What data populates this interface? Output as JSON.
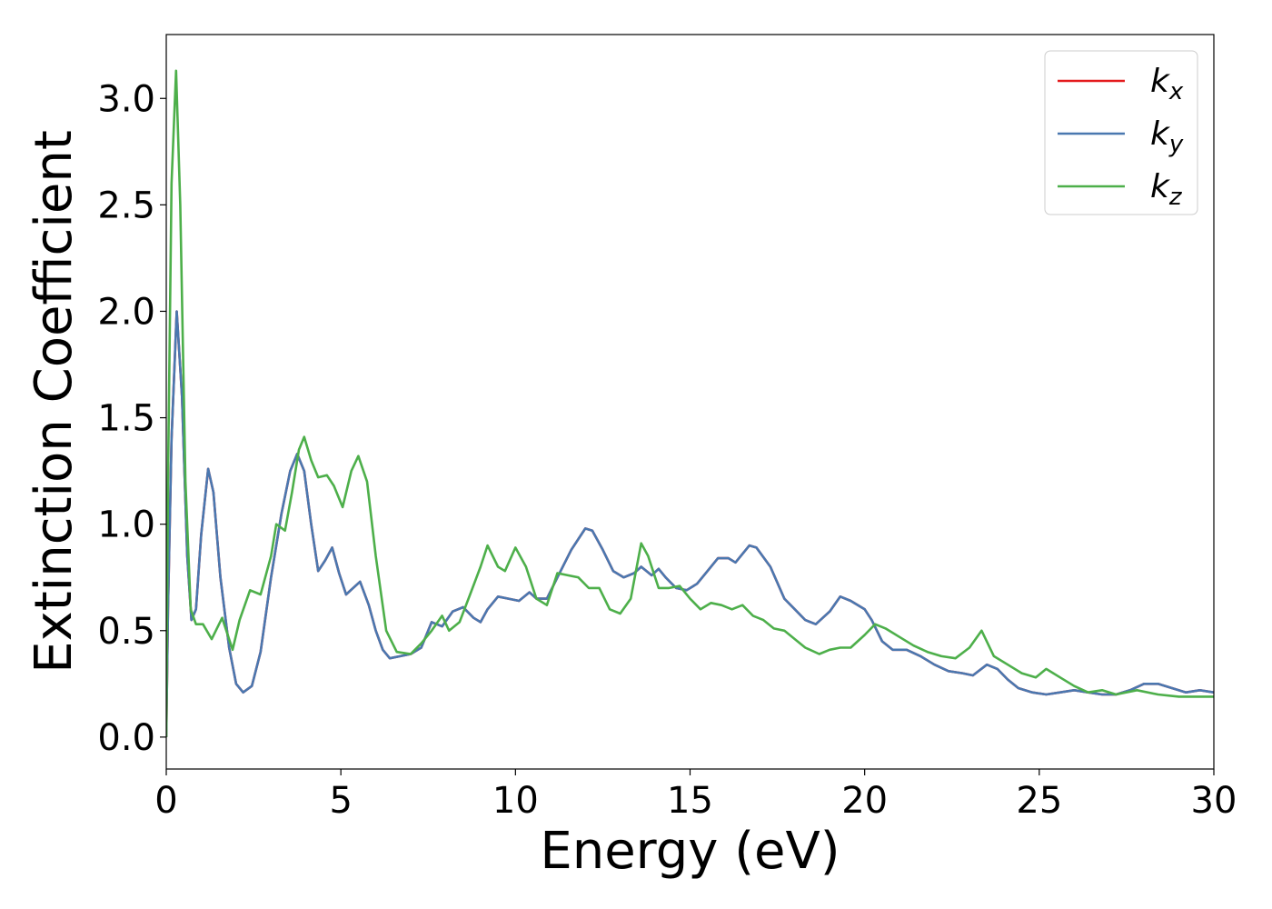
{
  "chart_data": {
    "type": "line",
    "title": "",
    "xlabel": "Energy (eV)",
    "ylabel": "Extinction Coefficient",
    "xlim": [
      0,
      30
    ],
    "ylim": [
      -0.15,
      3.3
    ],
    "xticks": [
      "0",
      "5",
      "10",
      "15",
      "20",
      "25",
      "30"
    ],
    "yticks": [
      "0.0",
      "0.5",
      "1.0",
      "1.5",
      "2.0",
      "2.5",
      "3.0"
    ],
    "grid": false,
    "legend_position": "top-right",
    "series": [
      {
        "name": "k_x",
        "label_base": "k",
        "label_sub": "x",
        "color": "#e41a1c",
        "points": [
          [
            0,
            0
          ],
          [
            0.05,
            0.6
          ],
          [
            0.15,
            1.4
          ],
          [
            0.3,
            2.0
          ],
          [
            0.45,
            1.6
          ],
          [
            0.6,
            0.85
          ],
          [
            0.72,
            0.55
          ],
          [
            0.85,
            0.6
          ],
          [
            1.0,
            0.95
          ],
          [
            1.2,
            1.26
          ],
          [
            1.35,
            1.15
          ],
          [
            1.55,
            0.75
          ],
          [
            1.8,
            0.42
          ],
          [
            2.0,
            0.25
          ],
          [
            2.2,
            0.21
          ],
          [
            2.45,
            0.24
          ],
          [
            2.7,
            0.4
          ],
          [
            3.0,
            0.75
          ],
          [
            3.3,
            1.05
          ],
          [
            3.55,
            1.25
          ],
          [
            3.75,
            1.33
          ],
          [
            3.95,
            1.25
          ],
          [
            4.15,
            1.0
          ],
          [
            4.35,
            0.78
          ],
          [
            4.55,
            0.83
          ],
          [
            4.75,
            0.89
          ],
          [
            4.95,
            0.77
          ],
          [
            5.15,
            0.67
          ],
          [
            5.35,
            0.7
          ],
          [
            5.55,
            0.73
          ],
          [
            5.8,
            0.62
          ],
          [
            6.0,
            0.5
          ],
          [
            6.2,
            0.41
          ],
          [
            6.4,
            0.37
          ],
          [
            6.7,
            0.38
          ],
          [
            7.0,
            0.39
          ],
          [
            7.3,
            0.42
          ],
          [
            7.6,
            0.54
          ],
          [
            7.9,
            0.52
          ],
          [
            8.2,
            0.59
          ],
          [
            8.5,
            0.61
          ],
          [
            8.8,
            0.56
          ],
          [
            9.0,
            0.54
          ],
          [
            9.2,
            0.6
          ],
          [
            9.5,
            0.66
          ],
          [
            9.8,
            0.65
          ],
          [
            10.1,
            0.64
          ],
          [
            10.4,
            0.68
          ],
          [
            10.6,
            0.65
          ],
          [
            10.9,
            0.65
          ],
          [
            11.2,
            0.75
          ],
          [
            11.6,
            0.88
          ],
          [
            12.0,
            0.98
          ],
          [
            12.2,
            0.97
          ],
          [
            12.5,
            0.88
          ],
          [
            12.8,
            0.78
          ],
          [
            13.1,
            0.75
          ],
          [
            13.4,
            0.77
          ],
          [
            13.6,
            0.8
          ],
          [
            13.9,
            0.76
          ],
          [
            14.1,
            0.79
          ],
          [
            14.3,
            0.75
          ],
          [
            14.6,
            0.7
          ],
          [
            14.9,
            0.69
          ],
          [
            15.2,
            0.72
          ],
          [
            15.5,
            0.78
          ],
          [
            15.8,
            0.84
          ],
          [
            16.1,
            0.84
          ],
          [
            16.3,
            0.82
          ],
          [
            16.7,
            0.9
          ],
          [
            16.9,
            0.89
          ],
          [
            17.3,
            0.8
          ],
          [
            17.7,
            0.65
          ],
          [
            18.0,
            0.6
          ],
          [
            18.3,
            0.55
          ],
          [
            18.6,
            0.53
          ],
          [
            19.0,
            0.59
          ],
          [
            19.3,
            0.66
          ],
          [
            19.6,
            0.64
          ],
          [
            20.0,
            0.6
          ],
          [
            20.2,
            0.55
          ],
          [
            20.5,
            0.45
          ],
          [
            20.8,
            0.41
          ],
          [
            21.2,
            0.41
          ],
          [
            21.6,
            0.38
          ],
          [
            22.0,
            0.34
          ],
          [
            22.4,
            0.31
          ],
          [
            22.8,
            0.3
          ],
          [
            23.1,
            0.29
          ],
          [
            23.5,
            0.34
          ],
          [
            23.8,
            0.32
          ],
          [
            24.1,
            0.27
          ],
          [
            24.4,
            0.23
          ],
          [
            24.8,
            0.21
          ],
          [
            25.2,
            0.2
          ],
          [
            25.6,
            0.21
          ],
          [
            26.0,
            0.22
          ],
          [
            26.4,
            0.21
          ],
          [
            26.8,
            0.2
          ],
          [
            27.2,
            0.2
          ],
          [
            27.6,
            0.22
          ],
          [
            28.0,
            0.25
          ],
          [
            28.4,
            0.25
          ],
          [
            28.8,
            0.23
          ],
          [
            29.2,
            0.21
          ],
          [
            29.6,
            0.22
          ],
          [
            30.0,
            0.21
          ]
        ]
      },
      {
        "name": "k_y",
        "label_base": "k",
        "label_sub": "y",
        "color": "#4a78b0",
        "points": [
          [
            0,
            0
          ],
          [
            0.05,
            0.6
          ],
          [
            0.15,
            1.4
          ],
          [
            0.3,
            2.0
          ],
          [
            0.45,
            1.6
          ],
          [
            0.6,
            0.85
          ],
          [
            0.72,
            0.55
          ],
          [
            0.85,
            0.6
          ],
          [
            1.0,
            0.95
          ],
          [
            1.2,
            1.26
          ],
          [
            1.35,
            1.15
          ],
          [
            1.55,
            0.75
          ],
          [
            1.8,
            0.42
          ],
          [
            2.0,
            0.25
          ],
          [
            2.2,
            0.21
          ],
          [
            2.45,
            0.24
          ],
          [
            2.7,
            0.4
          ],
          [
            3.0,
            0.75
          ],
          [
            3.3,
            1.05
          ],
          [
            3.55,
            1.25
          ],
          [
            3.75,
            1.33
          ],
          [
            3.95,
            1.25
          ],
          [
            4.15,
            1.0
          ],
          [
            4.35,
            0.78
          ],
          [
            4.55,
            0.83
          ],
          [
            4.75,
            0.89
          ],
          [
            4.95,
            0.77
          ],
          [
            5.15,
            0.67
          ],
          [
            5.35,
            0.7
          ],
          [
            5.55,
            0.73
          ],
          [
            5.8,
            0.62
          ],
          [
            6.0,
            0.5
          ],
          [
            6.2,
            0.41
          ],
          [
            6.4,
            0.37
          ],
          [
            6.7,
            0.38
          ],
          [
            7.0,
            0.39
          ],
          [
            7.3,
            0.42
          ],
          [
            7.6,
            0.54
          ],
          [
            7.9,
            0.52
          ],
          [
            8.2,
            0.59
          ],
          [
            8.5,
            0.61
          ],
          [
            8.8,
            0.56
          ],
          [
            9.0,
            0.54
          ],
          [
            9.2,
            0.6
          ],
          [
            9.5,
            0.66
          ],
          [
            9.8,
            0.65
          ],
          [
            10.1,
            0.64
          ],
          [
            10.4,
            0.68
          ],
          [
            10.6,
            0.65
          ],
          [
            10.9,
            0.65
          ],
          [
            11.2,
            0.75
          ],
          [
            11.6,
            0.88
          ],
          [
            12.0,
            0.98
          ],
          [
            12.2,
            0.97
          ],
          [
            12.5,
            0.88
          ],
          [
            12.8,
            0.78
          ],
          [
            13.1,
            0.75
          ],
          [
            13.4,
            0.77
          ],
          [
            13.6,
            0.8
          ],
          [
            13.9,
            0.76
          ],
          [
            14.1,
            0.79
          ],
          [
            14.3,
            0.75
          ],
          [
            14.6,
            0.7
          ],
          [
            14.9,
            0.69
          ],
          [
            15.2,
            0.72
          ],
          [
            15.5,
            0.78
          ],
          [
            15.8,
            0.84
          ],
          [
            16.1,
            0.84
          ],
          [
            16.3,
            0.82
          ],
          [
            16.7,
            0.9
          ],
          [
            16.9,
            0.89
          ],
          [
            17.3,
            0.8
          ],
          [
            17.7,
            0.65
          ],
          [
            18.0,
            0.6
          ],
          [
            18.3,
            0.55
          ],
          [
            18.6,
            0.53
          ],
          [
            19.0,
            0.59
          ],
          [
            19.3,
            0.66
          ],
          [
            19.6,
            0.64
          ],
          [
            20.0,
            0.6
          ],
          [
            20.2,
            0.55
          ],
          [
            20.5,
            0.45
          ],
          [
            20.8,
            0.41
          ],
          [
            21.2,
            0.41
          ],
          [
            21.6,
            0.38
          ],
          [
            22.0,
            0.34
          ],
          [
            22.4,
            0.31
          ],
          [
            22.8,
            0.3
          ],
          [
            23.1,
            0.29
          ],
          [
            23.5,
            0.34
          ],
          [
            23.8,
            0.32
          ],
          [
            24.1,
            0.27
          ],
          [
            24.4,
            0.23
          ],
          [
            24.8,
            0.21
          ],
          [
            25.2,
            0.2
          ],
          [
            25.6,
            0.21
          ],
          [
            26.0,
            0.22
          ],
          [
            26.4,
            0.21
          ],
          [
            26.8,
            0.2
          ],
          [
            27.2,
            0.2
          ],
          [
            27.6,
            0.22
          ],
          [
            28.0,
            0.25
          ],
          [
            28.4,
            0.25
          ],
          [
            28.8,
            0.23
          ],
          [
            29.2,
            0.21
          ],
          [
            29.6,
            0.22
          ],
          [
            30.0,
            0.21
          ]
        ]
      },
      {
        "name": "k_z",
        "label_base": "k",
        "label_sub": "z",
        "color": "#4daf4a",
        "points": [
          [
            0,
            0
          ],
          [
            0.05,
            1.2
          ],
          [
            0.15,
            2.6
          ],
          [
            0.28,
            3.13
          ],
          [
            0.4,
            2.5
          ],
          [
            0.55,
            1.2
          ],
          [
            0.7,
            0.6
          ],
          [
            0.85,
            0.53
          ],
          [
            1.05,
            0.53
          ],
          [
            1.3,
            0.46
          ],
          [
            1.6,
            0.56
          ],
          [
            1.9,
            0.41
          ],
          [
            2.1,
            0.55
          ],
          [
            2.4,
            0.69
          ],
          [
            2.7,
            0.67
          ],
          [
            3.0,
            0.85
          ],
          [
            3.15,
            1.0
          ],
          [
            3.4,
            0.97
          ],
          [
            3.6,
            1.15
          ],
          [
            3.8,
            1.35
          ],
          [
            3.95,
            1.41
          ],
          [
            4.15,
            1.3
          ],
          [
            4.35,
            1.22
          ],
          [
            4.6,
            1.23
          ],
          [
            4.8,
            1.18
          ],
          [
            5.05,
            1.08
          ],
          [
            5.3,
            1.25
          ],
          [
            5.5,
            1.32
          ],
          [
            5.75,
            1.2
          ],
          [
            6.0,
            0.85
          ],
          [
            6.3,
            0.5
          ],
          [
            6.6,
            0.4
          ],
          [
            7.0,
            0.39
          ],
          [
            7.3,
            0.44
          ],
          [
            7.6,
            0.5
          ],
          [
            7.9,
            0.57
          ],
          [
            8.1,
            0.5
          ],
          [
            8.4,
            0.54
          ],
          [
            8.7,
            0.67
          ],
          [
            9.0,
            0.8
          ],
          [
            9.2,
            0.9
          ],
          [
            9.5,
            0.8
          ],
          [
            9.7,
            0.78
          ],
          [
            10.0,
            0.89
          ],
          [
            10.3,
            0.8
          ],
          [
            10.6,
            0.65
          ],
          [
            10.9,
            0.62
          ],
          [
            11.2,
            0.77
          ],
          [
            11.5,
            0.76
          ],
          [
            11.8,
            0.75
          ],
          [
            12.1,
            0.7
          ],
          [
            12.4,
            0.7
          ],
          [
            12.7,
            0.6
          ],
          [
            13.0,
            0.58
          ],
          [
            13.3,
            0.65
          ],
          [
            13.6,
            0.91
          ],
          [
            13.8,
            0.85
          ],
          [
            14.1,
            0.7
          ],
          [
            14.4,
            0.7
          ],
          [
            14.7,
            0.71
          ],
          [
            15.0,
            0.65
          ],
          [
            15.3,
            0.6
          ],
          [
            15.6,
            0.63
          ],
          [
            15.9,
            0.62
          ],
          [
            16.2,
            0.6
          ],
          [
            16.5,
            0.62
          ],
          [
            16.8,
            0.57
          ],
          [
            17.1,
            0.55
          ],
          [
            17.4,
            0.51
          ],
          [
            17.7,
            0.5
          ],
          [
            18.0,
            0.46
          ],
          [
            18.3,
            0.42
          ],
          [
            18.7,
            0.39
          ],
          [
            19.0,
            0.41
          ],
          [
            19.3,
            0.42
          ],
          [
            19.6,
            0.42
          ],
          [
            20.0,
            0.48
          ],
          [
            20.3,
            0.53
          ],
          [
            20.6,
            0.51
          ],
          [
            21.0,
            0.47
          ],
          [
            21.4,
            0.43
          ],
          [
            21.8,
            0.4
          ],
          [
            22.2,
            0.38
          ],
          [
            22.6,
            0.37
          ],
          [
            23.0,
            0.42
          ],
          [
            23.35,
            0.5
          ],
          [
            23.7,
            0.38
          ],
          [
            24.1,
            0.34
          ],
          [
            24.5,
            0.3
          ],
          [
            24.9,
            0.28
          ],
          [
            25.2,
            0.32
          ],
          [
            25.6,
            0.28
          ],
          [
            26.0,
            0.24
          ],
          [
            26.4,
            0.21
          ],
          [
            26.8,
            0.22
          ],
          [
            27.2,
            0.2
          ],
          [
            27.8,
            0.22
          ],
          [
            28.4,
            0.2
          ],
          [
            29.0,
            0.19
          ],
          [
            30.0,
            0.19
          ]
        ]
      }
    ]
  }
}
